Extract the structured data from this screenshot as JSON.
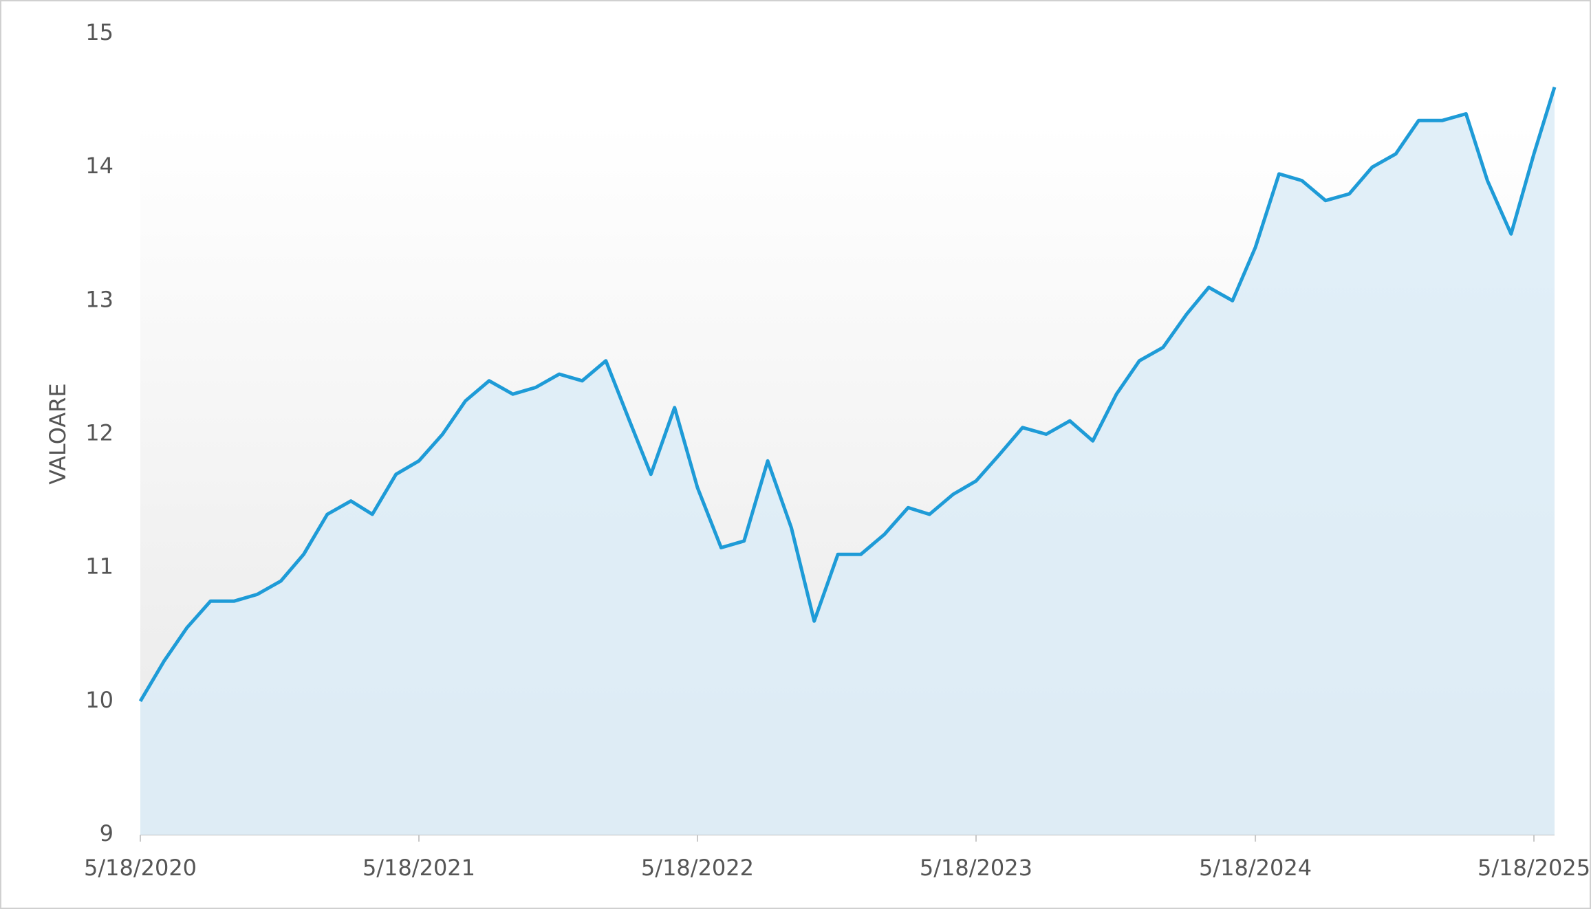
{
  "chart_data": {
    "type": "area",
    "y_label": "VALOARE",
    "color": "#1e9bd7",
    "fill": "#dcecf7",
    "x": [
      "5/18/2020",
      "6/18/2020",
      "7/18/2020",
      "8/18/2020",
      "9/18/2020",
      "10/18/2020",
      "11/18/2020",
      "12/18/2020",
      "1/18/2021",
      "2/18/2021",
      "3/18/2021",
      "4/18/2021",
      "5/18/2021",
      "6/18/2021",
      "7/18/2021",
      "8/18/2021",
      "9/18/2021",
      "10/18/2021",
      "11/18/2021",
      "12/18/2021",
      "1/18/2022",
      "2/18/2022",
      "3/18/2022",
      "4/18/2022",
      "5/18/2022",
      "6/18/2022",
      "7/18/2022",
      "8/18/2022",
      "9/18/2022",
      "10/18/2022",
      "11/18/2022",
      "12/18/2022",
      "1/18/2023",
      "2/18/2023",
      "3/18/2023",
      "4/18/2023",
      "5/18/2023",
      "6/18/2023",
      "7/18/2023",
      "8/18/2023",
      "9/18/2023",
      "10/18/2023",
      "11/18/2023",
      "12/18/2023",
      "1/18/2024",
      "2/18/2024",
      "3/18/2024",
      "4/18/2024",
      "5/18/2024",
      "6/18/2024",
      "7/18/2024",
      "8/18/2024",
      "9/18/2024",
      "10/18/2024",
      "11/18/2024",
      "12/18/2024",
      "1/18/2025",
      "2/18/2025",
      "3/18/2025",
      "4/18/2025",
      "5/18/2025",
      "6/14/2025"
    ],
    "values": [
      10.0,
      10.3,
      10.55,
      10.75,
      10.75,
      10.8,
      10.9,
      11.1,
      11.4,
      11.5,
      11.4,
      11.7,
      11.8,
      12.0,
      12.25,
      12.4,
      12.3,
      12.35,
      12.45,
      12.4,
      12.55,
      12.1,
      11.7,
      12.2,
      11.6,
      11.15,
      11.2,
      11.8,
      11.3,
      10.6,
      11.1,
      11.1,
      11.25,
      11.45,
      11.4,
      11.55,
      11.65,
      11.85,
      12.05,
      12.0,
      12.1,
      11.95,
      12.3,
      12.55,
      12.65,
      12.9,
      13.1,
      13.0,
      13.4,
      13.95,
      13.9,
      13.75,
      13.8,
      14.0,
      14.1,
      14.35,
      14.35,
      14.4,
      13.9,
      13.5,
      14.1,
      14.6
    ],
    "xlim": [
      "5/18/2020",
      "6/14/2025"
    ],
    "xticks": [
      "5/18/2020",
      "5/18/2021",
      "5/18/2022",
      "5/18/2023",
      "5/18/2024",
      "5/18/2025"
    ],
    "ylim": [
      9,
      15
    ],
    "yticks": [
      9,
      10,
      11,
      12,
      13,
      14,
      15
    ]
  }
}
